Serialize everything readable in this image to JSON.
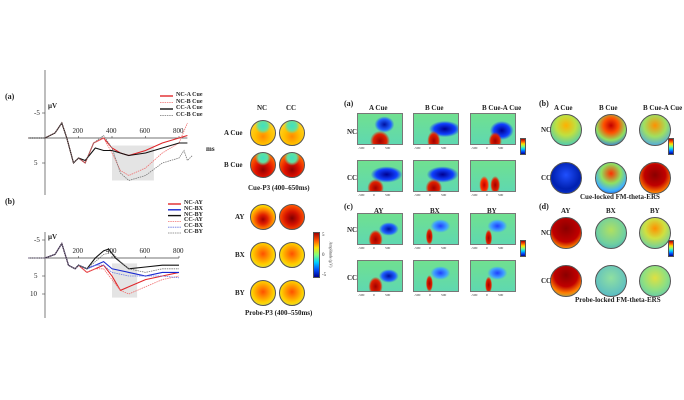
{
  "panels": {
    "a": "(a)",
    "b": "(b)",
    "ra": "(a)",
    "rb": "(b)",
    "rc": "(c)",
    "rd": "(d)"
  },
  "erp": {
    "unit": "µV",
    "xunit": "ms",
    "xticks": [
      "200",
      "400",
      "600",
      "800"
    ],
    "a_yticks": [
      "-5",
      "5"
    ],
    "b_yticks": [
      "-5",
      "5",
      "10"
    ]
  },
  "topo_left": {
    "cols": [
      "NC",
      "CC"
    ],
    "a_rows": [
      "A Cue",
      "B Cue"
    ],
    "a_caption": "Cue-P3 (400–650ms)",
    "b_rows": [
      "AY",
      "BX",
      "BY"
    ],
    "b_caption": "Probe-P3 (400–550ms)",
    "colorbar_label": "Amplitude (µV)",
    "colorbar_ticks": [
      "5",
      "0",
      "-5"
    ]
  },
  "tf": {
    "a_cols": [
      "A Cue",
      "B Cue",
      "B Cue-A Cue"
    ],
    "c_cols": [
      "AY",
      "BX",
      "BY"
    ],
    "rows": [
      "NC",
      "CC"
    ],
    "xticks": [
      "-500",
      "0",
      "500"
    ]
  },
  "topo_right": {
    "b_cols": [
      "A Cue",
      "B Cue",
      "B Cue-A Cue"
    ],
    "b_caption": "Cue-locked FM-theta-ERS",
    "d_cols": [
      "AY",
      "BX",
      "BY"
    ],
    "d_caption": "Probe-locked FM-theta-ERS"
  },
  "chart_data": [
    {
      "type": "line",
      "panel": "(a)",
      "xlabel": "ms",
      "ylabel": "µV",
      "xlim": [
        -100,
        850
      ],
      "ylim": [
        -7,
        10
      ],
      "y_inverted": true,
      "shaded_window": [
        400,
        650
      ],
      "legend": "top-right",
      "series": [
        {
          "name": "NC-A Cue",
          "color": "#e0262a",
          "dash": false,
          "points": [
            [
              -100,
              0
            ],
            [
              0,
              0
            ],
            [
              60,
              -1
            ],
            [
              100,
              -3
            ],
            [
              130,
              0
            ],
            [
              170,
              5
            ],
            [
              200,
              4
            ],
            [
              240,
              5
            ],
            [
              290,
              1
            ],
            [
              350,
              0
            ],
            [
              400,
              2
            ],
            [
              450,
              3
            ],
            [
              500,
              3.5
            ],
            [
              600,
              2.5
            ],
            [
              700,
              1
            ],
            [
              800,
              0
            ],
            [
              850,
              -0.5
            ]
          ]
        },
        {
          "name": "NC-B Cue",
          "color": "#f07070",
          "dash": true,
          "points": [
            [
              -100,
              0
            ],
            [
              0,
              0
            ],
            [
              60,
              -1
            ],
            [
              100,
              -3
            ],
            [
              130,
              0
            ],
            [
              170,
              5
            ],
            [
              200,
              4
            ],
            [
              240,
              5
            ],
            [
              290,
              1
            ],
            [
              350,
              0
            ],
            [
              400,
              3
            ],
            [
              450,
              6.5
            ],
            [
              500,
              7.5
            ],
            [
              600,
              6
            ],
            [
              700,
              3
            ],
            [
              800,
              1
            ],
            [
              850,
              -3
            ]
          ]
        },
        {
          "name": "CC-A Cue",
          "color": "#111111",
          "dash": false,
          "points": [
            [
              -100,
              0
            ],
            [
              0,
              0
            ],
            [
              60,
              -1
            ],
            [
              100,
              -3
            ],
            [
              130,
              0
            ],
            [
              170,
              5
            ],
            [
              200,
              4
            ],
            [
              240,
              4.5
            ],
            [
              300,
              2
            ],
            [
              350,
              2.5
            ],
            [
              400,
              2.5
            ],
            [
              500,
              3.5
            ],
            [
              600,
              3
            ],
            [
              700,
              2
            ],
            [
              800,
              1
            ],
            [
              850,
              1
            ]
          ]
        },
        {
          "name": "CC-B Cue",
          "color": "#777777",
          "dash": true,
          "points": [
            [
              -100,
              0
            ],
            [
              0,
              0
            ],
            [
              60,
              -1
            ],
            [
              100,
              -3
            ],
            [
              130,
              0
            ],
            [
              170,
              5
            ],
            [
              200,
              4
            ],
            [
              240,
              5
            ],
            [
              290,
              1
            ],
            [
              350,
              -0.5
            ],
            [
              400,
              2
            ],
            [
              450,
              7
            ],
            [
              500,
              8.5
            ],
            [
              600,
              7.5
            ],
            [
              700,
              5
            ],
            [
              800,
              4
            ],
            [
              830,
              2.5
            ],
            [
              850,
              4.5
            ],
            [
              880,
              3.5
            ]
          ]
        }
      ]
    },
    {
      "type": "line",
      "panel": "(b)",
      "xlabel": "ms",
      "ylabel": "µV",
      "xlim": [
        -100,
        850
      ],
      "ylim": [
        -7,
        13
      ],
      "y_inverted": true,
      "shaded_window": [
        400,
        550
      ],
      "legend": "top-right",
      "series": [
        {
          "name": "NC-AY",
          "color": "#e0262a",
          "dash": false,
          "points": [
            [
              -100,
              0
            ],
            [
              0,
              0
            ],
            [
              60,
              -1
            ],
            [
              100,
              -4
            ],
            [
              140,
              2
            ],
            [
              180,
              3
            ],
            [
              200,
              2
            ],
            [
              250,
              4
            ],
            [
              300,
              3
            ],
            [
              350,
              2
            ],
            [
              400,
              5
            ],
            [
              450,
              9
            ],
            [
              500,
              8
            ],
            [
              600,
              6
            ],
            [
              700,
              5
            ],
            [
              800,
              4
            ]
          ]
        },
        {
          "name": "NC-BX",
          "color": "#1a2ad0",
          "dash": false,
          "points": [
            [
              -100,
              0
            ],
            [
              0,
              0
            ],
            [
              60,
              -1
            ],
            [
              100,
              -4
            ],
            [
              140,
              2
            ],
            [
              180,
              3
            ],
            [
              200,
              2
            ],
            [
              250,
              3
            ],
            [
              300,
              2
            ],
            [
              350,
              1
            ],
            [
              400,
              3
            ],
            [
              500,
              4
            ],
            [
              600,
              5
            ],
            [
              700,
              4
            ],
            [
              800,
              4
            ]
          ]
        },
        {
          "name": "NC-BY",
          "color": "#111111",
          "dash": false,
          "points": [
            [
              -100,
              0
            ],
            [
              0,
              0
            ],
            [
              60,
              -1
            ],
            [
              100,
              -4
            ],
            [
              140,
              2
            ],
            [
              180,
              3
            ],
            [
              200,
              2
            ],
            [
              250,
              3
            ],
            [
              300,
              0
            ],
            [
              350,
              -2
            ],
            [
              380,
              -2.5
            ],
            [
              420,
              0
            ],
            [
              500,
              3
            ],
            [
              600,
              2.5
            ],
            [
              700,
              2
            ],
            [
              800,
              2
            ]
          ]
        },
        {
          "name": "CC-AY",
          "color": "#f07070",
          "dash": true,
          "points": [
            [
              -100,
              0
            ],
            [
              0,
              0
            ],
            [
              60,
              -1
            ],
            [
              100,
              -4
            ],
            [
              140,
              2
            ],
            [
              180,
              3
            ],
            [
              200,
              2
            ],
            [
              250,
              4
            ],
            [
              300,
              3
            ],
            [
              350,
              3
            ],
            [
              400,
              6
            ],
            [
              450,
              9
            ],
            [
              500,
              10
            ],
            [
              600,
              8
            ],
            [
              700,
              6
            ],
            [
              800,
              5
            ]
          ]
        },
        {
          "name": "CC-BX",
          "color": "#6a78e0",
          "dash": true,
          "points": [
            [
              -100,
              0
            ],
            [
              0,
              0
            ],
            [
              60,
              -1
            ],
            [
              100,
              -4
            ],
            [
              140,
              2
            ],
            [
              180,
              3
            ],
            [
              200,
              2
            ],
            [
              250,
              3
            ],
            [
              300,
              2
            ],
            [
              350,
              2
            ],
            [
              400,
              4
            ],
            [
              500,
              5
            ],
            [
              600,
              5
            ],
            [
              700,
              5
            ],
            [
              800,
              5.5
            ]
          ]
        },
        {
          "name": "CC-BY",
          "color": "#777777",
          "dash": true,
          "points": [
            [
              -100,
              0
            ],
            [
              0,
              0
            ],
            [
              60,
              -1
            ],
            [
              100,
              -4
            ],
            [
              140,
              2
            ],
            [
              180,
              3
            ],
            [
              200,
              2
            ],
            [
              250,
              3
            ],
            [
              300,
              1
            ],
            [
              350,
              -1
            ],
            [
              400,
              -1.5
            ],
            [
              450,
              1
            ],
            [
              500,
              3
            ],
            [
              600,
              4
            ],
            [
              700,
              3
            ],
            [
              800,
              3
            ]
          ]
        }
      ]
    }
  ]
}
